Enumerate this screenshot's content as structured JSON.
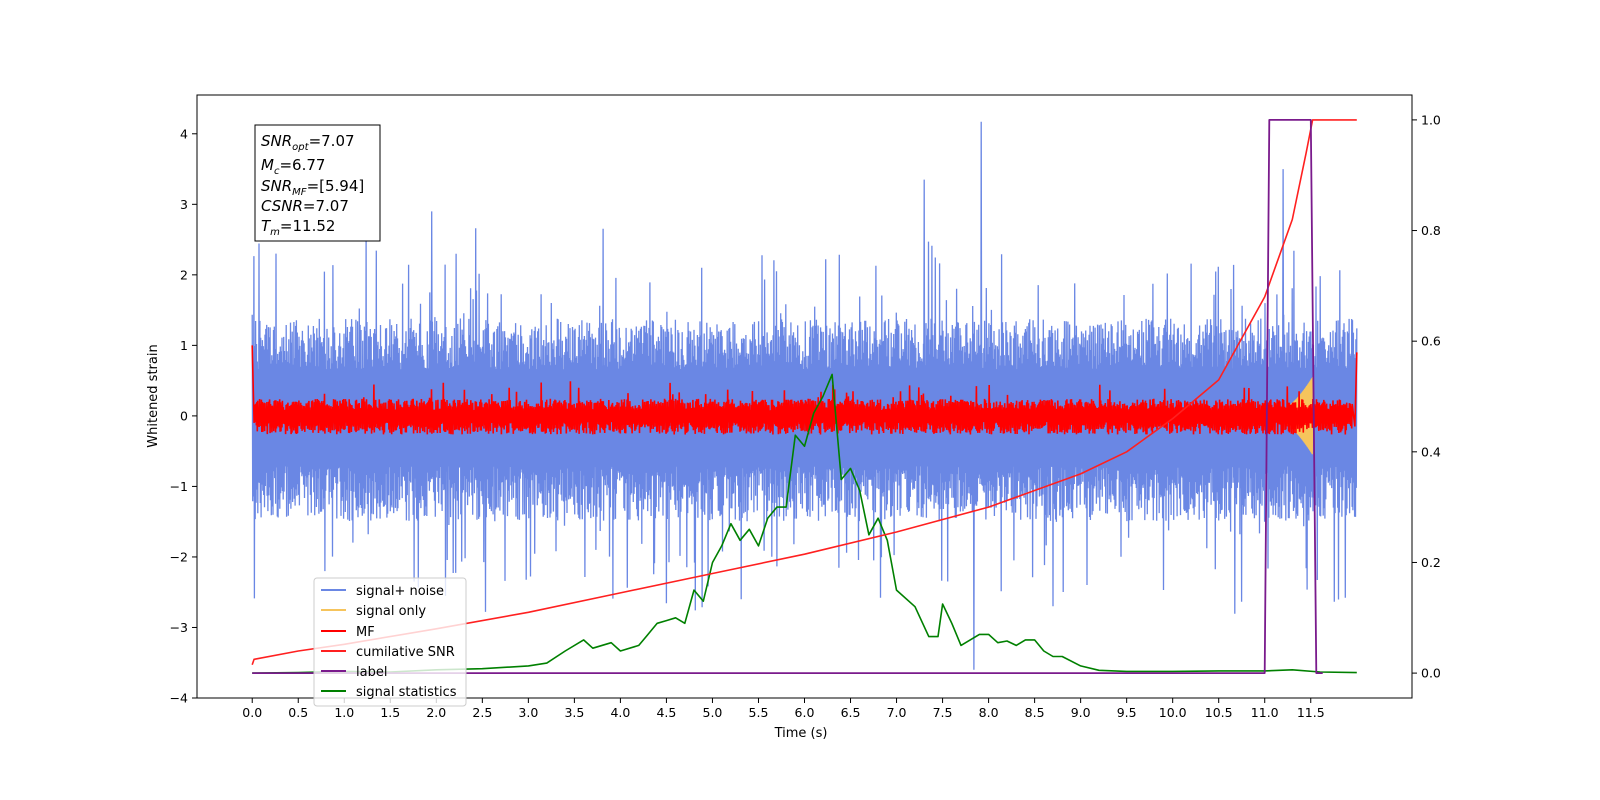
{
  "chart_data": {
    "type": "line",
    "xlabel": "Time (s)",
    "ylabel": "Whitened strain",
    "x_ticks": [
      "0.0",
      "0.5",
      "1.0",
      "1.5",
      "2.0",
      "2.5",
      "3.0",
      "3.5",
      "4.0",
      "4.5",
      "5.0",
      "5.5",
      "6.0",
      "6.5",
      "7.0",
      "7.5",
      "8.0",
      "8.5",
      "9.0",
      "9.5",
      "10.0",
      "10.5",
      "11.0",
      "11.5"
    ],
    "y_left_ticks": [
      "−4",
      "−3",
      "−2",
      "−1",
      "0",
      "1",
      "2",
      "3",
      "4"
    ],
    "y_right_ticks": [
      "0.0",
      "0.2",
      "0.4",
      "0.6",
      "0.8",
      "1.0"
    ],
    "xlim": [
      -0.6,
      12.6
    ],
    "ylim_left": [
      -4,
      4.55
    ],
    "ylim_right": [
      -0.045,
      1.045
    ],
    "grid": false,
    "legend_position": "lower-left",
    "info_box": {
      "snr_opt": {
        "sym": "SNR",
        "sub": "opt",
        "value": "=7.07"
      },
      "mc": {
        "sym": "M",
        "sub": "c",
        "value": "=6.77"
      },
      "snr_mf": {
        "sym": "SNR",
        "sub": "MF",
        "value": "=[5.94]"
      },
      "csnr": {
        "sym": "CSNR",
        "sub": "",
        "value": "=7.07"
      },
      "tm": {
        "sym": "T",
        "sub": "m",
        "value": "=11.52"
      }
    },
    "series": [
      {
        "name": "signal+ noise",
        "color": "#6a87e4",
        "axis": "left",
        "envelope": {
          "t_start": 0.0,
          "t_end": 12.0,
          "typical_high": 1.2,
          "typical_low": -1.3,
          "spike_high": 2.6,
          "spike_low": -2.9
        },
        "outliers": [
          {
            "x": 7.92,
            "y": 4.17
          },
          {
            "x": 7.84,
            "y": -3.6
          },
          {
            "x": 7.3,
            "y": 3.35
          },
          {
            "x": 1.95,
            "y": 2.9
          },
          {
            "x": 11.2,
            "y": 3.5
          }
        ]
      },
      {
        "name": "signal only",
        "color": "#f6c45c",
        "axis": "left",
        "envelope": {
          "t_start": 11.0,
          "t_end": 11.52,
          "max_amplitude": 0.55
        }
      },
      {
        "name": "MF",
        "color": "#ff0000",
        "axis": "left",
        "envelope": {
          "t_start": 0.0,
          "t_end": 12.0,
          "typical_high": 0.22,
          "typical_low": -0.24,
          "spike_high": 0.5,
          "spike_low": -0.25
        },
        "points": [
          {
            "x": 0.0,
            "y": 1.0
          },
          {
            "x": 0.02,
            "y": -0.1
          },
          {
            "x": 11.98,
            "y": -0.15
          },
          {
            "x": 12.0,
            "y": 0.9
          }
        ]
      },
      {
        "name": "cumilative SNR",
        "color": "#ff2020",
        "axis": "right",
        "points": [
          {
            "x": 0.0,
            "y": 0.015
          },
          {
            "x": 0.02,
            "y": 0.025
          },
          {
            "x": 0.5,
            "y": 0.04
          },
          {
            "x": 1.0,
            "y": 0.052
          },
          {
            "x": 2.0,
            "y": 0.08
          },
          {
            "x": 3.0,
            "y": 0.11
          },
          {
            "x": 4.0,
            "y": 0.145
          },
          {
            "x": 5.0,
            "y": 0.18
          },
          {
            "x": 6.0,
            "y": 0.215
          },
          {
            "x": 7.0,
            "y": 0.255
          },
          {
            "x": 8.0,
            "y": 0.3
          },
          {
            "x": 8.5,
            "y": 0.33
          },
          {
            "x": 9.0,
            "y": 0.36
          },
          {
            "x": 9.5,
            "y": 0.4
          },
          {
            "x": 10.0,
            "y": 0.46
          },
          {
            "x": 10.5,
            "y": 0.53
          },
          {
            "x": 11.0,
            "y": 0.68
          },
          {
            "x": 11.3,
            "y": 0.82
          },
          {
            "x": 11.45,
            "y": 0.94
          },
          {
            "x": 11.52,
            "y": 1.0
          },
          {
            "x": 12.0,
            "y": 1.0
          }
        ]
      },
      {
        "name": "label",
        "color": "#7a1a8c",
        "axis": "right",
        "points": [
          {
            "x": 0.0,
            "y": 0.0
          },
          {
            "x": 11.0,
            "y": 0.0
          },
          {
            "x": 11.05,
            "y": 1.0
          },
          {
            "x": 11.5,
            "y": 1.0
          },
          {
            "x": 11.56,
            "y": 0.0
          },
          {
            "x": 11.63,
            "y": 0.0
          }
        ]
      },
      {
        "name": "signal statistics",
        "color": "#008000",
        "axis": "right",
        "points": [
          {
            "x": 0.0,
            "y": 0.0
          },
          {
            "x": 0.5,
            "y": 0.001
          },
          {
            "x": 1.0,
            "y": 0.003
          },
          {
            "x": 1.5,
            "y": 0.002
          },
          {
            "x": 2.0,
            "y": 0.006
          },
          {
            "x": 2.5,
            "y": 0.008
          },
          {
            "x": 3.0,
            "y": 0.013
          },
          {
            "x": 3.2,
            "y": 0.018
          },
          {
            "x": 3.4,
            "y": 0.04
          },
          {
            "x": 3.6,
            "y": 0.06
          },
          {
            "x": 3.7,
            "y": 0.045
          },
          {
            "x": 3.9,
            "y": 0.055
          },
          {
            "x": 4.0,
            "y": 0.04
          },
          {
            "x": 4.2,
            "y": 0.05
          },
          {
            "x": 4.3,
            "y": 0.07
          },
          {
            "x": 4.4,
            "y": 0.09
          },
          {
            "x": 4.5,
            "y": 0.095
          },
          {
            "x": 4.6,
            "y": 0.1
          },
          {
            "x": 4.7,
            "y": 0.09
          },
          {
            "x": 4.8,
            "y": 0.15
          },
          {
            "x": 4.9,
            "y": 0.13
          },
          {
            "x": 5.0,
            "y": 0.2
          },
          {
            "x": 5.1,
            "y": 0.23
          },
          {
            "x": 5.2,
            "y": 0.27
          },
          {
            "x": 5.3,
            "y": 0.24
          },
          {
            "x": 5.4,
            "y": 0.26
          },
          {
            "x": 5.5,
            "y": 0.23
          },
          {
            "x": 5.6,
            "y": 0.28
          },
          {
            "x": 5.7,
            "y": 0.3
          },
          {
            "x": 5.8,
            "y": 0.3
          },
          {
            "x": 5.9,
            "y": 0.43
          },
          {
            "x": 6.0,
            "y": 0.41
          },
          {
            "x": 6.1,
            "y": 0.47
          },
          {
            "x": 6.2,
            "y": 0.5
          },
          {
            "x": 6.3,
            "y": 0.54
          },
          {
            "x": 6.4,
            "y": 0.35
          },
          {
            "x": 6.5,
            "y": 0.37
          },
          {
            "x": 6.6,
            "y": 0.33
          },
          {
            "x": 6.7,
            "y": 0.25
          },
          {
            "x": 6.8,
            "y": 0.28
          },
          {
            "x": 6.9,
            "y": 0.24
          },
          {
            "x": 7.0,
            "y": 0.15
          },
          {
            "x": 7.2,
            "y": 0.12
          },
          {
            "x": 7.35,
            "y": 0.066
          },
          {
            "x": 7.45,
            "y": 0.066
          },
          {
            "x": 7.5,
            "y": 0.125
          },
          {
            "x": 7.6,
            "y": 0.09
          },
          {
            "x": 7.7,
            "y": 0.05
          },
          {
            "x": 7.8,
            "y": 0.06
          },
          {
            "x": 7.9,
            "y": 0.07
          },
          {
            "x": 8.0,
            "y": 0.07
          },
          {
            "x": 8.1,
            "y": 0.055
          },
          {
            "x": 8.2,
            "y": 0.058
          },
          {
            "x": 8.3,
            "y": 0.05
          },
          {
            "x": 8.4,
            "y": 0.06
          },
          {
            "x": 8.5,
            "y": 0.06
          },
          {
            "x": 8.6,
            "y": 0.04
          },
          {
            "x": 8.7,
            "y": 0.03
          },
          {
            "x": 8.8,
            "y": 0.03
          },
          {
            "x": 9.0,
            "y": 0.013
          },
          {
            "x": 9.2,
            "y": 0.005
          },
          {
            "x": 9.5,
            "y": 0.003
          },
          {
            "x": 10.0,
            "y": 0.003
          },
          {
            "x": 10.5,
            "y": 0.004
          },
          {
            "x": 11.0,
            "y": 0.004
          },
          {
            "x": 11.3,
            "y": 0.006
          },
          {
            "x": 11.6,
            "y": 0.002
          },
          {
            "x": 12.0,
            "y": 0.001
          }
        ]
      }
    ]
  }
}
